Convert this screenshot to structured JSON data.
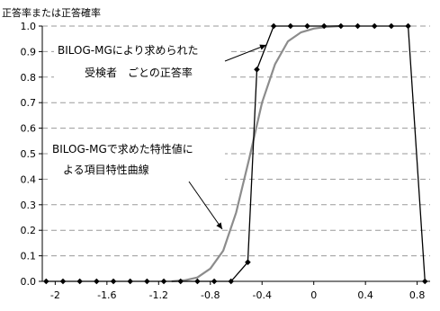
{
  "chart_data": {
    "type": "line",
    "ylabel": "正答率または正答確率",
    "xlim": [
      -2.1,
      0.9
    ],
    "ylim": [
      0,
      1.0
    ],
    "x_ticks": [
      "-2",
      "-1.6",
      "-1.2",
      "-0.8",
      "-0.4",
      "0",
      "0.4",
      "0.8"
    ],
    "x_tick_values": [
      -2.0,
      -1.6,
      -1.2,
      -0.8,
      -0.4,
      0.0,
      0.4,
      0.8
    ],
    "y_ticks": [
      "0.0",
      "0.1",
      "0.2",
      "0.3",
      "0.4",
      "0.5",
      "0.6",
      "0.7",
      "0.8",
      "0.9",
      "1.0"
    ],
    "y_tick_values": [
      0.0,
      0.1,
      0.2,
      0.3,
      0.4,
      0.5,
      0.6,
      0.7,
      0.8,
      0.9,
      1.0
    ],
    "grid": "horizontal-dashed",
    "series": [
      {
        "kind": "observed",
        "color": "#000000",
        "marker": "diamond",
        "x": [
          -2.07,
          -1.94,
          -1.81,
          -1.68,
          -1.55,
          -1.42,
          -1.29,
          -1.16,
          -1.03,
          -0.9,
          -0.77,
          -0.64,
          -0.51,
          -0.44,
          -0.31,
          -0.18,
          -0.05,
          0.08,
          0.21,
          0.34,
          0.47,
          0.6,
          0.73,
          0.86
        ],
        "y": [
          0,
          0,
          0,
          0,
          0,
          0,
          0,
          0,
          0,
          0,
          0,
          0,
          0.075,
          0.83,
          1,
          1,
          1,
          1,
          1,
          1,
          1,
          1,
          1,
          0
        ]
      },
      {
        "kind": "fitted",
        "color": "#8c8c8c",
        "marker": "none",
        "x": [
          -1.1,
          -1.0,
          -0.9,
          -0.8,
          -0.7,
          -0.6,
          -0.5,
          -0.4,
          -0.3,
          -0.2,
          -0.1,
          0.0,
          0.1,
          0.2
        ],
        "y": [
          0.0,
          0.004,
          0.015,
          0.05,
          0.12,
          0.27,
          0.48,
          0.7,
          0.85,
          0.94,
          0.975,
          0.99,
          0.997,
          1.0
        ]
      }
    ],
    "annotations": [
      {
        "target": "observed",
        "text_lines": [
          "BILOG-MGにより求められた",
          "受検者　ごとの正答率"
        ]
      },
      {
        "target": "fitted",
        "text_lines": [
          "BILOG-MGで求めた特性値に",
          "よる項目特性曲線"
        ]
      }
    ]
  }
}
